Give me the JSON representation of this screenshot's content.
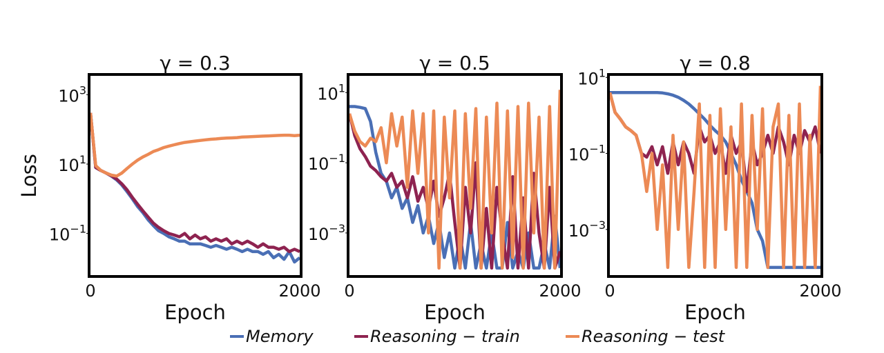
{
  "figure": {
    "colors": {
      "Memory": "#4a6fb5",
      "Reasoning - train": "#8e2350",
      "Reasoning - test": "#ec8a55"
    },
    "legend": {
      "position": "bottom",
      "items": [
        {
          "label": "Memory",
          "color": "#4a6fb5"
        },
        {
          "label": "Reasoning − train",
          "color": "#8e2350"
        },
        {
          "label": "Reasoning − test",
          "color": "#ec8a55"
        }
      ]
    }
  },
  "chart_data": [
    {
      "type": "line",
      "title": "γ = 0.3",
      "xlabel": "Epoch",
      "ylabel": "Loss",
      "yscale": "log",
      "xlim": [
        0,
        2000
      ],
      "ylim": [
        0.0063,
        3500
      ],
      "xticks": [
        0,
        2000
      ],
      "xtick_labels": [
        "0",
        "2000"
      ],
      "yticks": [
        1000,
        10,
        0.1
      ],
      "ytick_labels": [
        {
          "base": "10",
          "exp": "3"
        },
        {
          "base": "10",
          "exp": "1"
        },
        {
          "base": "10",
          "exp": "−1"
        }
      ],
      "x": [
        0,
        50,
        100,
        150,
        200,
        250,
        300,
        350,
        400,
        450,
        500,
        550,
        600,
        650,
        700,
        750,
        800,
        850,
        900,
        950,
        1000,
        1050,
        1100,
        1150,
        1200,
        1250,
        1300,
        1350,
        1400,
        1450,
        1500,
        1550,
        1600,
        1650,
        1700,
        1750,
        1800,
        1850,
        1900,
        1950,
        2000
      ],
      "series": [
        {
          "name": "Memory",
          "values": [
            300,
            8,
            6.5,
            5.5,
            4.5,
            3.5,
            2.5,
            1.6,
            1.0,
            0.6,
            0.4,
            0.25,
            0.17,
            0.12,
            0.1,
            0.08,
            0.07,
            0.06,
            0.06,
            0.05,
            0.05,
            0.05,
            0.045,
            0.04,
            0.045,
            0.04,
            0.035,
            0.04,
            0.035,
            0.03,
            0.035,
            0.03,
            0.03,
            0.025,
            0.03,
            0.02,
            0.025,
            0.018,
            0.03,
            0.015,
            0.02
          ]
        },
        {
          "name": "Reasoning - train",
          "values": [
            300,
            8,
            6.5,
            5.5,
            4.6,
            3.7,
            2.7,
            1.8,
            1.1,
            0.7,
            0.45,
            0.3,
            0.2,
            0.15,
            0.12,
            0.1,
            0.09,
            0.08,
            0.1,
            0.07,
            0.09,
            0.07,
            0.08,
            0.06,
            0.07,
            0.06,
            0.07,
            0.05,
            0.06,
            0.05,
            0.06,
            0.05,
            0.04,
            0.05,
            0.04,
            0.04,
            0.035,
            0.04,
            0.03,
            0.035,
            0.03
          ]
        },
        {
          "name": "Reasoning - test",
          "values": [
            300,
            9,
            6.5,
            5.5,
            4.8,
            4.5,
            5.5,
            7.5,
            10,
            13,
            16,
            19,
            23,
            26,
            30,
            33,
            36,
            39,
            42,
            44,
            46,
            48,
            50,
            52,
            53,
            55,
            56,
            57,
            58,
            60,
            61,
            62,
            63,
            64,
            65,
            66,
            67,
            68,
            68,
            66,
            68
          ]
        }
      ]
    },
    {
      "type": "line",
      "title": "γ = 0.5",
      "xlabel": "Epoch",
      "yscale": "log",
      "xlim": [
        0,
        2000
      ],
      "ylim": [
        6.3e-05,
        30
      ],
      "xticks": [
        0,
        2000
      ],
      "xtick_labels": [
        "0",
        "2000"
      ],
      "yticks": [
        10,
        0.1,
        0.001
      ],
      "ytick_labels": [
        {
          "base": "10",
          "exp": "1"
        },
        {
          "base": "10",
          "exp": "−1"
        },
        {
          "base": "10",
          "exp": "−3"
        }
      ],
      "x": [
        0,
        50,
        100,
        150,
        200,
        250,
        300,
        350,
        400,
        450,
        500,
        550,
        600,
        650,
        700,
        750,
        800,
        850,
        900,
        950,
        1000,
        1050,
        1100,
        1150,
        1200,
        1250,
        1300,
        1350,
        1400,
        1450,
        1500,
        1550,
        1600,
        1650,
        1700,
        1750,
        1800,
        1850,
        1900,
        1950,
        2000
      ],
      "series": [
        {
          "name": "Memory",
          "values": [
            4,
            4,
            3.8,
            3.5,
            1.5,
            0.2,
            0.05,
            0.03,
            0.01,
            0.02,
            0.005,
            0.01,
            0.002,
            0.006,
            0.001,
            0.003,
            0.0005,
            0.002,
            0.0002,
            0.001,
            0.0001,
            0.0008,
            0.0001,
            0.002,
            0.0001,
            0.0005,
            0.0001,
            0.001,
            0.0001,
            0.0001,
            0.002,
            0.0001,
            0.0003,
            0.0001,
            0.001,
            0.0001,
            0.0001,
            0.0005,
            0.0001,
            0.003,
            0.0001
          ]
        },
        {
          "name": "Reasoning - train",
          "values": [
            2.5,
            0.6,
            0.25,
            0.15,
            0.08,
            0.06,
            0.04,
            0.03,
            0.05,
            0.02,
            0.03,
            0.01,
            0.04,
            0.008,
            0.02,
            0.005,
            0.03,
            0.003,
            0.01,
            0.05,
            0.002,
            0.0001,
            0.02,
            0.001,
            0.1,
            0.0001,
            0.005,
            0.0001,
            0.02,
            0.001,
            0.0001,
            0.04,
            0.0001,
            0.01,
            0.0001,
            0.05,
            0.001,
            0.0001,
            0.02,
            0.0001,
            0.0003
          ]
        },
        {
          "name": "Reasoning - test",
          "values": [
            2.5,
            0.8,
            0.4,
            0.3,
            0.5,
            0.4,
            1.0,
            0.1,
            2.5,
            0.3,
            2,
            0.02,
            3,
            0.05,
            2.5,
            0.001,
            3,
            0.0001,
            2,
            0.01,
            3,
            0.0001,
            2.5,
            0.005,
            3.5,
            0.0001,
            2,
            0.001,
            5,
            0.0001,
            3,
            0.0002,
            4,
            0.0001,
            5,
            0.001,
            2,
            0.0001,
            4,
            0.0001,
            12
          ]
        }
      ]
    },
    {
      "type": "line",
      "title": "γ = 0.8",
      "xlabel": "Epoch",
      "yscale": "log",
      "xlim": [
        0,
        2000
      ],
      "ylim": [
        6.3e-05,
        11
      ],
      "xticks": [
        0,
        2000
      ],
      "xtick_labels": [
        "0",
        "2000"
      ],
      "yticks": [
        10,
        0.1,
        0.001
      ],
      "ytick_labels": [
        {
          "base": "10",
          "exp": "1"
        },
        {
          "base": "10",
          "exp": "−1"
        },
        {
          "base": "10",
          "exp": "−3"
        }
      ],
      "x": [
        0,
        50,
        100,
        150,
        200,
        250,
        300,
        350,
        400,
        450,
        500,
        550,
        600,
        650,
        700,
        750,
        800,
        850,
        900,
        950,
        1000,
        1050,
        1100,
        1150,
        1200,
        1250,
        1300,
        1350,
        1400,
        1450,
        1500,
        1550,
        1600,
        1650,
        1700,
        1750,
        1800,
        1850,
        1900,
        1950,
        2000
      ],
      "series": [
        {
          "name": "Memory",
          "values": [
            4,
            4,
            4,
            4,
            4,
            4,
            4,
            4,
            4,
            4,
            3.9,
            3.7,
            3.4,
            3.0,
            2.5,
            2.0,
            1.5,
            1.1,
            0.8,
            0.55,
            0.4,
            0.3,
            0.2,
            0.1,
            0.05,
            0.02,
            0.01,
            0.005,
            0.001,
            0.0005,
            0.0001,
            0.0001,
            0.0001,
            0.0001,
            0.0001,
            0.0001,
            0.0001,
            0.0001,
            0.0001,
            0.0001,
            0.0001
          ]
        },
        {
          "name": "Reasoning - train",
          "values": [
            4,
            1.2,
            0.8,
            0.5,
            0.4,
            0.3,
            0.1,
            0.08,
            0.15,
            0.05,
            0.15,
            0.03,
            0.2,
            0.05,
            0.2,
            0.1,
            0.03,
            0.5,
            0.2,
            0.3,
            0.1,
            0.2,
            0.03,
            0.3,
            0.1,
            0.2,
            0.01,
            0.2,
            0.05,
            0.1,
            0.3,
            0.1,
            0.5,
            0.2,
            0.05,
            0.3,
            0.1,
            0.4,
            0.2,
            0.5,
            0.1
          ]
        },
        {
          "name": "Reasoning - test",
          "values": [
            4,
            1.2,
            0.8,
            0.5,
            0.4,
            0.3,
            0.1,
            0.01,
            0.1,
            0.001,
            0.05,
            0.0001,
            0.3,
            0.001,
            0.2,
            0.0001,
            0.01,
            2,
            0.0001,
            1,
            0.0001,
            1.5,
            0.001,
            0.5,
            0.0001,
            2,
            0.0001,
            1,
            0.001,
            1.5,
            0.0001,
            0.5,
            2,
            0.0001,
            1,
            0.0001,
            2,
            0.0001,
            0.3,
            0.0001,
            6
          ]
        }
      ]
    }
  ]
}
